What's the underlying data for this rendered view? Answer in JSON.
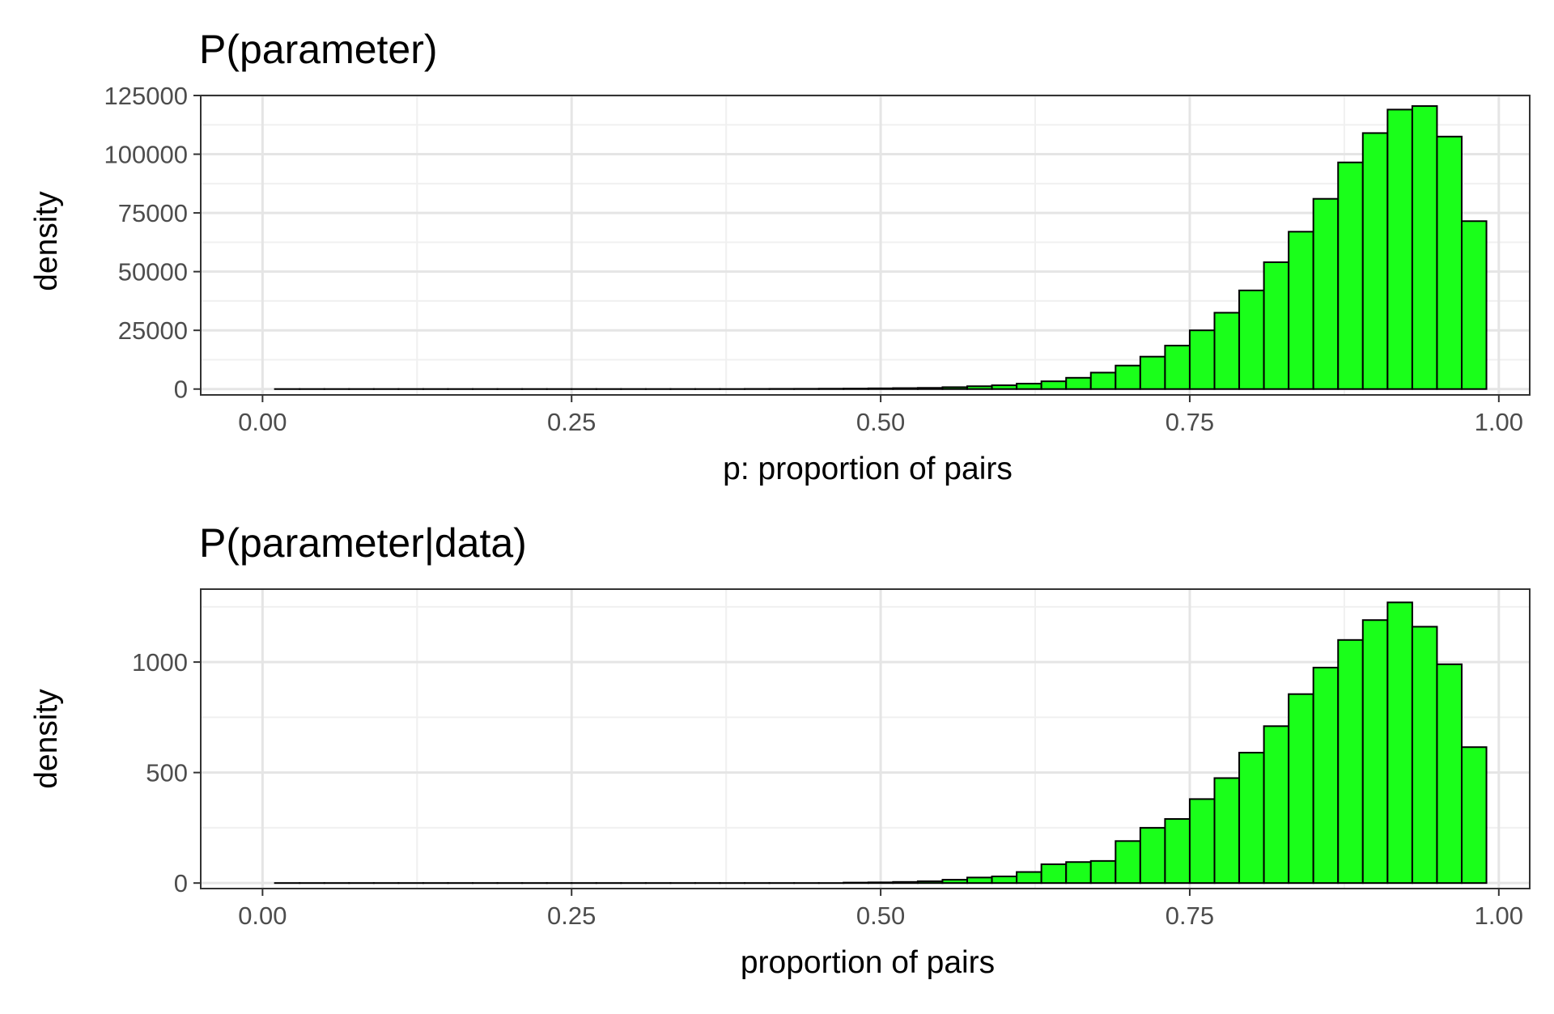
{
  "chart_data": [
    {
      "type": "bar",
      "title": "P(parameter)",
      "xlabel": "p: proportion of pairs",
      "ylabel": "density",
      "xlim": [
        -0.05,
        1.025
      ],
      "ylim": [
        -2500,
        125000
      ],
      "xticks": [
        0.0,
        0.25,
        0.5,
        0.75,
        1.0
      ],
      "xtick_labels": [
        "0.00",
        "0.25",
        "0.50",
        "0.75",
        "1.00"
      ],
      "yticks": [
        0,
        25000,
        50000,
        75000,
        100000,
        125000
      ],
      "ytick_labels": [
        "0",
        "25000",
        "50000",
        "75000",
        "100000",
        "125000"
      ],
      "grid": true,
      "bin_width": 0.02,
      "bin_starts": [
        0.01,
        0.03,
        0.05,
        0.07,
        0.09,
        0.11,
        0.13,
        0.15,
        0.17,
        0.19,
        0.21,
        0.23,
        0.25,
        0.27,
        0.29,
        0.31,
        0.33,
        0.35,
        0.37,
        0.39,
        0.41,
        0.43,
        0.45,
        0.47,
        0.49,
        0.51,
        0.53,
        0.55,
        0.57,
        0.59,
        0.61,
        0.63,
        0.65,
        0.67,
        0.69,
        0.71,
        0.73,
        0.75,
        0.77,
        0.79,
        0.81,
        0.83,
        0.85,
        0.87,
        0.89,
        0.91,
        0.93,
        0.95,
        0.97
      ],
      "values": [
        0,
        0,
        0,
        0,
        0,
        0,
        0,
        0,
        0,
        0,
        0,
        0,
        0,
        0,
        0,
        0,
        0,
        0,
        0,
        50,
        80,
        100,
        150,
        200,
        300,
        400,
        500,
        800,
        1200,
        1600,
        2300,
        3300,
        4800,
        7000,
        10000,
        13800,
        18500,
        25000,
        32500,
        42000,
        54000,
        67000,
        81000,
        96500,
        109000,
        119000,
        120500,
        107500,
        71500
      ],
      "bar_fill": "#1aff1a",
      "bar_stroke": "#000000"
    },
    {
      "type": "bar",
      "title": "P(parameter|data)",
      "xlabel": "proportion of pairs",
      "ylabel": "density",
      "xlim": [
        -0.05,
        1.025
      ],
      "ylim": [
        -25,
        1330
      ],
      "xticks": [
        0.0,
        0.25,
        0.5,
        0.75,
        1.0
      ],
      "xtick_labels": [
        "0.00",
        "0.25",
        "0.50",
        "0.75",
        "1.00"
      ],
      "yticks": [
        0,
        500,
        1000
      ],
      "ytick_labels": [
        "0",
        "500",
        "1000"
      ],
      "grid": true,
      "bin_width": 0.02,
      "bin_starts": [
        0.01,
        0.03,
        0.05,
        0.07,
        0.09,
        0.11,
        0.13,
        0.15,
        0.17,
        0.19,
        0.21,
        0.23,
        0.25,
        0.27,
        0.29,
        0.31,
        0.33,
        0.35,
        0.37,
        0.39,
        0.41,
        0.43,
        0.45,
        0.47,
        0.49,
        0.51,
        0.53,
        0.55,
        0.57,
        0.59,
        0.61,
        0.63,
        0.65,
        0.67,
        0.69,
        0.71,
        0.73,
        0.75,
        0.77,
        0.79,
        0.81,
        0.83,
        0.85,
        0.87,
        0.89,
        0.91,
        0.93,
        0.95,
        0.97
      ],
      "values": [
        0,
        0,
        0,
        0,
        0,
        0,
        0,
        0,
        0,
        0,
        0,
        0,
        0,
        0,
        0,
        0,
        0,
        0,
        0,
        0,
        0,
        0,
        0,
        2,
        3,
        5,
        8,
        15,
        25,
        30,
        50,
        85,
        95,
        100,
        190,
        250,
        290,
        380,
        475,
        590,
        710,
        855,
        975,
        1100,
        1190,
        1270,
        1160,
        990,
        615
      ],
      "bar_fill": "#1aff1a",
      "bar_stroke": "#000000"
    }
  ]
}
